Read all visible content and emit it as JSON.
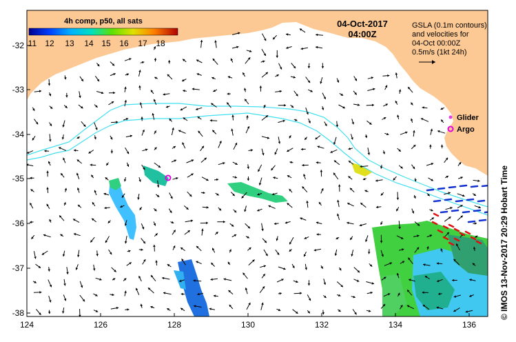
{
  "map": {
    "colorbar": {
      "title": "4h comp, p50, all sats",
      "ticks": [
        "11",
        "12",
        "13",
        "14",
        "15",
        "16",
        "17",
        "18"
      ],
      "colors": [
        "#0000a0",
        "#0050ff",
        "#00c0ff",
        "#00e080",
        "#60e000",
        "#e0e000",
        "#ff8000",
        "#c00000"
      ]
    },
    "date": "04-Oct-2017",
    "time": "04:00Z",
    "gsla_lines": [
      "GSLA (0.1m contours)",
      "and velocities for",
      "04-Oct 00:00Z",
      "0.5m/s (1kt 24h)"
    ],
    "legend": {
      "glider": "Glider",
      "argo": "Argo",
      "glider_color": "#e040e0",
      "argo_color": "#e000e0"
    },
    "credit": "© IMOS 13-Nov-2017 20:29 Hobart Time",
    "lon_ticks": [
      "124",
      "126",
      "128",
      "130",
      "132",
      "134",
      "136"
    ],
    "lat_ticks": [
      "-32",
      "-33",
      "-34",
      "-35",
      "-36",
      "-37",
      "-38"
    ],
    "land_color": "#fcc994",
    "contour_color": "#40e0f0"
  }
}
